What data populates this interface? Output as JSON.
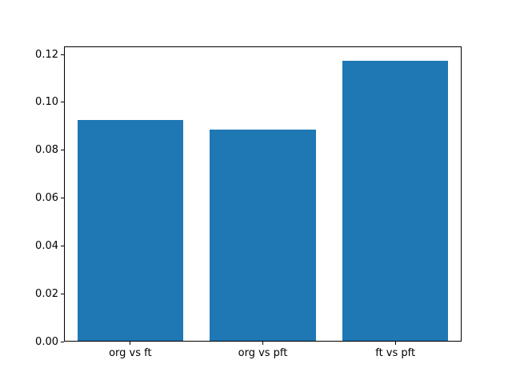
{
  "chart_data": {
    "type": "bar",
    "title": "",
    "xlabel": "",
    "ylabel": "",
    "categories": [
      "org vs ft",
      "org vs pft",
      "ft vs pft"
    ],
    "values": [
      0.0925,
      0.0885,
      0.1175
    ],
    "ylim": [
      0,
      0.1234
    ],
    "ytick_labels": [
      "0.00",
      "0.02",
      "0.04",
      "0.06",
      "0.08",
      "0.10",
      "0.12"
    ],
    "bar_color": "#1f77b4",
    "grid": false,
    "legend": false,
    "background_color": "#ffffff"
  }
}
